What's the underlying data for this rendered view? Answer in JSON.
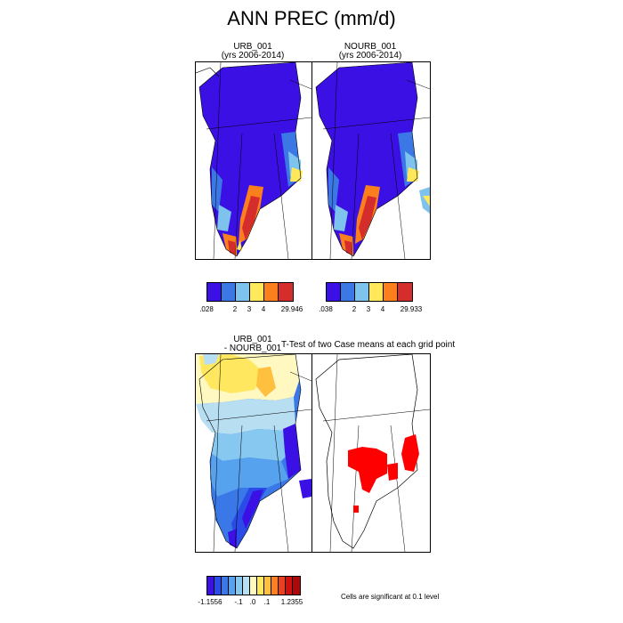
{
  "figure": {
    "title": "ANN PREC (mm/d)"
  },
  "panels": {
    "case1": {
      "name": "URB_001",
      "years": "(yrs 2006-2014)"
    },
    "case2": {
      "name": "NOURB_001",
      "years": "(yrs 2006-2014)"
    },
    "diff": {
      "line1": "URB_001",
      "line2": "- NOURB_001"
    },
    "ttest": {
      "title": "T-Test of two Case means at each grid point"
    }
  },
  "colorbars": {
    "case1": {
      "ticks": [
        ".028",
        "2",
        "3",
        "4",
        "29.946"
      ]
    },
    "case2": {
      "ticks": [
        ".038",
        "2",
        "3",
        "4",
        "29.933"
      ]
    },
    "diff": {
      "ticks": [
        "-1.1556",
        "-.1",
        ".0",
        ".1",
        "1.2355"
      ]
    }
  },
  "colors": {
    "prec": [
      "#3a10e5",
      "#3b78e6",
      "#7ec3ed",
      "#ffe85a",
      "#fc7f1e",
      "#d52c2c"
    ],
    "diff": [
      "#3a10e5",
      "#2a4be8",
      "#3a78e8",
      "#56a2ee",
      "#86c8f0",
      "#b8def2",
      "#fff8c0",
      "#ffe860",
      "#ffc040",
      "#ff8020",
      "#e84020",
      "#d01010",
      "#b00808"
    ],
    "significant": "#ff0000",
    "land_line": "#000000"
  },
  "footnote": "Cells are significant at 0.1 level"
}
